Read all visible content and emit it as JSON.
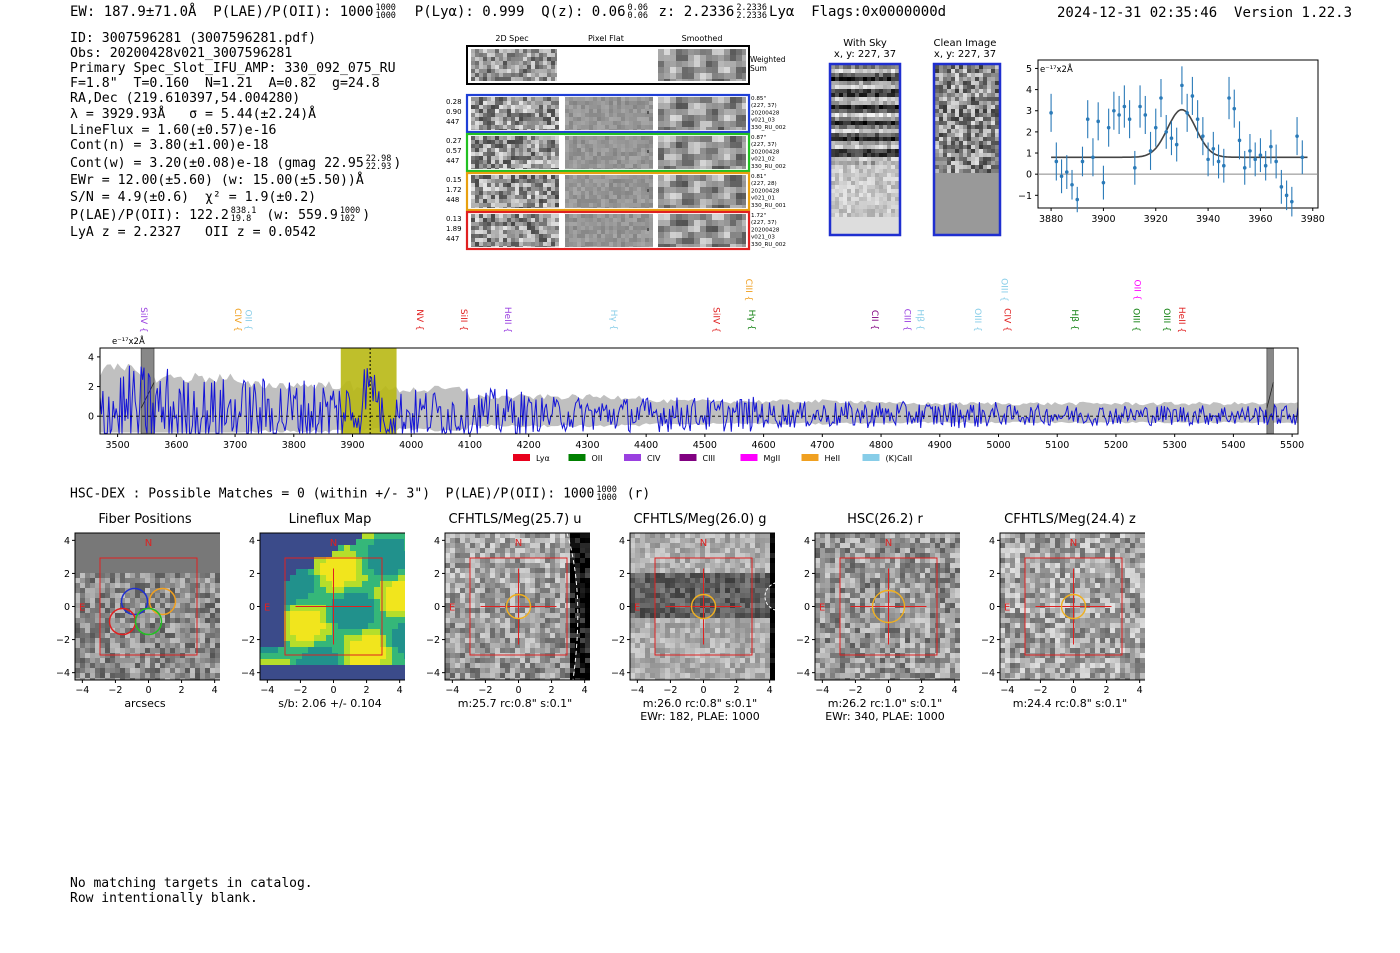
{
  "header": {
    "ew": "EW: 187.9±71.0Å",
    "plae_label": "P(LAE)/P(OII): 1000",
    "plae_hi": "1000",
    "plae_lo": "1000",
    "plya": "P(Lyα): 0.999",
    "qz_label": "Q(z): 0.06",
    "qz_hi": "0.06",
    "qz_lo": "0.06",
    "z_label": "z: 2.2336",
    "z_hi": "2.2336",
    "z_lo": "2.2336",
    "z_line": "Lyα",
    "flags": "Flags:0x0000000d",
    "timestamp": "2024-12-31 02:35:46",
    "version": "Version 1.22.3"
  },
  "info": {
    "id": "ID: 3007596281 (3007596281.pdf)",
    "obs": "Obs: 20200428v021_3007596281",
    "primary": "Primary Spec_Slot_IFU_AMP: 330_092_075_RU",
    "params": "F=1.8\"  T=0.160  N=1.21  A=0.82  g=24.8",
    "radec": "RA,Dec (219.610397,54.004280)",
    "lambda": "λ = 3929.93Å   σ = 5.44(±2.24)Å",
    "lineflux": "LineFlux = 1.60(±0.57)e-16",
    "contn": "Cont(n) = 3.80(±1.00)e-18",
    "contw": "Cont(w) = 3.20(±0.08)e-18 (gmag 22.95",
    "gmag_hi": "22.98",
    "gmag_lo": "22.93",
    "ewr": "EWr = 12.00(±5.60) (w: 15.00(±5.50))Å",
    "sn": "S/N = 4.9(±0.6)  χ² = 1.9(±0.2)",
    "plae": "P(LAE)/P(OII): 122.2",
    "plae_hi": "838.1",
    "plae_lo": "19.8",
    "plae_w": "(w: 559.9",
    "plae_w_hi": "1000",
    "plae_w_lo": "102",
    "plae_close": ")",
    "lya_z": "LyA z = 2.2327   OII z = 0.0542"
  },
  "cutouts": {
    "headers": [
      "2D Spec",
      "Pixel Flat",
      "Smoothed"
    ],
    "weighted_label": "Weighted Sum",
    "rows": [
      {
        "l1": "0.28",
        "l2": "0.90",
        "l3": "447",
        "r1": "0.85\"",
        "r2": "(227, 37)",
        "r3": "20200428",
        "r4": "v021_03",
        "r5": "330_RU_002",
        "color": "#1f3fd6"
      },
      {
        "l1": "0.27",
        "l2": "0.57",
        "l3": "447",
        "r1": "0.87\"",
        "r2": "(227, 37)",
        "r3": "20200428",
        "r4": "v021_02",
        "r5": "330_RU_002",
        "color": "#22c022"
      },
      {
        "l1": "0.15",
        "l2": "1.72",
        "l3": "448",
        "r1": "0.81\"",
        "r2": "(227, 28)",
        "r3": "20200428",
        "r4": "v021_01",
        "r5": "330_RU_001",
        "color": "#e8a010"
      },
      {
        "l1": "0.13",
        "l2": "1.89",
        "l3": "447",
        "r1": "1.72\"",
        "r2": "(227, 37)",
        "r3": "20200428",
        "r4": "v021_03",
        "r5": "330_RU_002",
        "color": "#e02020"
      }
    ]
  },
  "sky": {
    "with_sky_title": "With Sky",
    "with_sky_xy": "x, y: 227, 37",
    "clean_title": "Clean Image",
    "clean_xy": "x, y: 227, 37"
  },
  "chart_data": [
    {
      "type": "scatter",
      "name": "zoom-spectrum",
      "title": "",
      "ylabel_unit": "e⁻¹⁷x2Å",
      "xlim": [
        3875,
        3982
      ],
      "ylim": [
        -1.6,
        5.4
      ],
      "xticks": [
        3880,
        3900,
        3920,
        3940,
        3960,
        3980
      ],
      "yticks": [
        -1,
        0,
        1,
        2,
        3,
        4,
        5
      ],
      "points": [
        {
          "x": 3880,
          "y": 2.9,
          "e": 0.9
        },
        {
          "x": 3882,
          "y": 0.6,
          "e": 0.9
        },
        {
          "x": 3884,
          "y": -0.1,
          "e": 0.8
        },
        {
          "x": 3886,
          "y": 0.1,
          "e": 0.8
        },
        {
          "x": 3888,
          "y": -0.5,
          "e": 0.7
        },
        {
          "x": 3890,
          "y": -1.2,
          "e": 0.6
        },
        {
          "x": 3892,
          "y": 0.6,
          "e": 0.7
        },
        {
          "x": 3894,
          "y": 2.6,
          "e": 0.9
        },
        {
          "x": 3896,
          "y": 0.8,
          "e": 0.9
        },
        {
          "x": 3898,
          "y": 2.5,
          "e": 0.9
        },
        {
          "x": 3900,
          "y": -0.4,
          "e": 0.8
        },
        {
          "x": 3902,
          "y": 2.2,
          "e": 0.9
        },
        {
          "x": 3904,
          "y": 3.0,
          "e": 0.9
        },
        {
          "x": 3906,
          "y": 2.8,
          "e": 0.9
        },
        {
          "x": 3908,
          "y": 3.2,
          "e": 1.0
        },
        {
          "x": 3910,
          "y": 2.6,
          "e": 0.9
        },
        {
          "x": 3912,
          "y": 0.3,
          "e": 0.8
        },
        {
          "x": 3914,
          "y": 3.2,
          "e": 1.0
        },
        {
          "x": 3916,
          "y": 2.8,
          "e": 0.9
        },
        {
          "x": 3918,
          "y": 1.1,
          "e": 0.9
        },
        {
          "x": 3920,
          "y": 2.2,
          "e": 0.9
        },
        {
          "x": 3922,
          "y": 3.6,
          "e": 0.9
        },
        {
          "x": 3924,
          "y": 2.0,
          "e": 0.8
        },
        {
          "x": 3926,
          "y": 1.7,
          "e": 0.8
        },
        {
          "x": 3928,
          "y": 1.4,
          "e": 0.8
        },
        {
          "x": 3930,
          "y": 4.2,
          "e": 0.9
        },
        {
          "x": 3932,
          "y": 2.9,
          "e": 0.9
        },
        {
          "x": 3934,
          "y": 3.7,
          "e": 0.9
        },
        {
          "x": 3936,
          "y": 2.6,
          "e": 0.9
        },
        {
          "x": 3938,
          "y": 1.8,
          "e": 0.9
        },
        {
          "x": 3940,
          "y": 0.7,
          "e": 0.8
        },
        {
          "x": 3942,
          "y": 1.2,
          "e": 0.8
        },
        {
          "x": 3944,
          "y": 0.6,
          "e": 0.8
        },
        {
          "x": 3946,
          "y": 0.4,
          "e": 0.8
        },
        {
          "x": 3948,
          "y": 3.6,
          "e": 1.0
        },
        {
          "x": 3950,
          "y": 3.1,
          "e": 0.9
        },
        {
          "x": 3952,
          "y": 1.6,
          "e": 0.9
        },
        {
          "x": 3954,
          "y": 0.3,
          "e": 0.8
        },
        {
          "x": 3956,
          "y": 1.1,
          "e": 0.8
        },
        {
          "x": 3958,
          "y": 0.7,
          "e": 0.8
        },
        {
          "x": 3960,
          "y": 0.9,
          "e": 0.8
        },
        {
          "x": 3962,
          "y": 0.4,
          "e": 0.7
        },
        {
          "x": 3964,
          "y": 1.3,
          "e": 0.8
        },
        {
          "x": 3966,
          "y": 0.6,
          "e": 0.8
        },
        {
          "x": 3968,
          "y": -0.6,
          "e": 0.8
        },
        {
          "x": 3970,
          "y": -1.0,
          "e": 0.7
        },
        {
          "x": 3972,
          "y": -1.3,
          "e": 0.7
        },
        {
          "x": 3974,
          "y": 1.8,
          "e": 0.9
        },
        {
          "x": 3976,
          "y": 0.8,
          "e": 0.8
        }
      ],
      "fit": {
        "continuum": 0.8,
        "amplitude": 2.25,
        "center": 3929.93,
        "sigma": 5.44
      }
    },
    {
      "type": "line",
      "name": "full-spectrum",
      "ylabel_unit": "e⁻¹⁷x2Å",
      "xlim": [
        3470,
        5510
      ],
      "ylim": [
        -1.2,
        4.6
      ],
      "xticks": [
        3500,
        3600,
        3700,
        3800,
        3900,
        4000,
        4100,
        4200,
        4300,
        4400,
        4500,
        4600,
        4700,
        4800,
        4900,
        5000,
        5100,
        5200,
        5300,
        5400,
        5500
      ],
      "yticks": [
        0,
        2,
        4
      ],
      "highlight_range": [
        3880,
        3975
      ],
      "emission_lines": [
        {
          "label": "SiIV",
          "x": 3540,
          "color": "#9a40e0",
          "row": 0
        },
        {
          "label": "CIV",
          "x": 3700,
          "color": "#f0a020",
          "row": 0
        },
        {
          "label": "OII",
          "x": 3718,
          "color": "#87cde8",
          "row": 0
        },
        {
          "label": "NV",
          "x": 4010,
          "color": "#e02020",
          "row": 0
        },
        {
          "label": "SiII",
          "x": 4085,
          "color": "#e02020",
          "row": 0
        },
        {
          "label": "HeII",
          "x": 4160,
          "color": "#9a40e0",
          "row": 0
        },
        {
          "label": "Hγ",
          "x": 4340,
          "color": "#87cde8",
          "row": 0
        },
        {
          "label": "SiIV",
          "x": 4515,
          "color": "#e02020",
          "row": 0
        },
        {
          "label": "CIII",
          "x": 4570,
          "color": "#f0a020",
          "row": 1
        },
        {
          "label": "Hγ",
          "x": 4575,
          "color": "#108010",
          "row": 0
        },
        {
          "label": "CII",
          "x": 4785,
          "color": "#800080",
          "row": 0
        },
        {
          "label": "CIII",
          "x": 4840,
          "color": "#9a40e0",
          "row": 0
        },
        {
          "label": "Hβ",
          "x": 4862,
          "color": "#87cde8",
          "row": 0
        },
        {
          "label": "OIII",
          "x": 4960,
          "color": "#87cde8",
          "row": 0
        },
        {
          "label": "OIII",
          "x": 5005,
          "color": "#87cde8",
          "row": 1
        },
        {
          "label": "CIV",
          "x": 5010,
          "color": "#e02020",
          "row": 0
        },
        {
          "label": "Hβ",
          "x": 5125,
          "color": "#108010",
          "row": 0
        },
        {
          "label": "OII",
          "x": 5232,
          "color": "#ff00ff",
          "row": 1
        },
        {
          "label": "OIII",
          "x": 5230,
          "color": "#108010",
          "row": 0
        },
        {
          "label": "OIII",
          "x": 5282,
          "color": "#108010",
          "row": 0
        },
        {
          "label": "HeII",
          "x": 5307,
          "color": "#e02020",
          "row": 0
        }
      ],
      "legend": [
        {
          "label": "Lyα",
          "color": "#e8001c"
        },
        {
          "label": "OII",
          "color": "#008000"
        },
        {
          "label": "CIV",
          "color": "#9a40e0"
        },
        {
          "label": "CIII",
          "color": "#800080"
        },
        {
          "label": "MgII",
          "color": "#ff00ff"
        },
        {
          "label": "HeII",
          "color": "#f0a020"
        },
        {
          "label": "(K)CaII",
          "color": "#87cde8"
        }
      ]
    }
  ],
  "hsc": {
    "summary": "HSC-DEX : Possible Matches = 0 (within +/- 3\")  P(LAE)/P(OII): 1000",
    "summary_hi": "1000",
    "summary_lo": "1000",
    "summary_band": "(r)"
  },
  "panels": [
    {
      "title": "Fiber Positions",
      "cap1": "arcsecs",
      "cap2": "",
      "kind": "fiber"
    },
    {
      "title": "Lineflux Map",
      "cap1": "s/b: 2.06 +/- 0.104",
      "cap2": "",
      "kind": "lineflux"
    },
    {
      "title": "CFHTLS/Meg(25.7) u",
      "cap1": "m:25.7 rc:0.8\"  s:0.1\"",
      "cap2": "",
      "kind": "u"
    },
    {
      "title": "CFHTLS/Meg(26.0) g",
      "cap1": "m:26.0 rc:0.8\"  s:0.1\"",
      "cap2": "EWr: 182, PLAE: 1000",
      "kind": "g"
    },
    {
      "title": "HSC(26.2) r",
      "cap1": "m:26.2 rc:1.0\"  s:0.1\"",
      "cap2": "EWr: 340, PLAE: 1000",
      "kind": "r"
    },
    {
      "title": "CFHTLS/Meg(24.4) z",
      "cap1": "m:24.4 rc:0.8\"  s:0.1\"",
      "cap2": "",
      "kind": "z"
    }
  ],
  "panel_axis": {
    "ticks": [
      "−4",
      "−2",
      "0",
      "2",
      "4"
    ],
    "north": "N",
    "east": "E"
  },
  "footer": {
    "line1": "No matching targets in catalog.",
    "line2": "Row intentionally blank."
  }
}
